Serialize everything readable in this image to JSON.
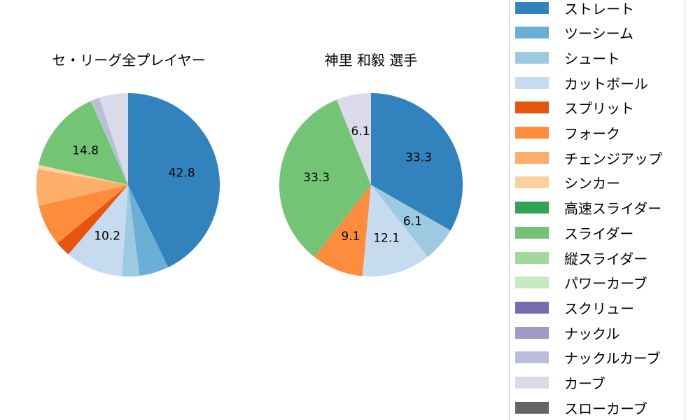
{
  "chart_data": [
    {
      "type": "pie",
      "title": "セ・リーグ全プレイヤー",
      "start_angle": 90,
      "direction": "clockwise",
      "categories": [
        "ストレート",
        "ツーシーム",
        "シュート",
        "カットボール",
        "スプリット",
        "フォーク",
        "チェンジアップ",
        "シンカー",
        "高速スライダー",
        "スライダー",
        "縦スライダー",
        "パワーカーブ",
        "スクリュー",
        "ナックル",
        "ナックルカーブ",
        "カーブ",
        "スローカーブ"
      ],
      "values": [
        42.8,
        5.2,
        3.1,
        10.2,
        2.7,
        7.3,
        6.4,
        0.8,
        0,
        14.8,
        0.3,
        0,
        0,
        0,
        1.3,
        5.1,
        0
      ],
      "labels_shown": {
        "ストレート": "42.8",
        "カットボール": "10.2",
        "スライダー": "14.8"
      }
    },
    {
      "type": "pie",
      "title": "神里 和毅  選手",
      "start_angle": 90,
      "direction": "clockwise",
      "categories": [
        "ストレート",
        "ツーシーム",
        "シュート",
        "カットボール",
        "スプリット",
        "フォーク",
        "チェンジアップ",
        "シンカー",
        "高速スライダー",
        "スライダー",
        "縦スライダー",
        "パワーカーブ",
        "スクリュー",
        "ナックル",
        "ナックルカーブ",
        "カーブ",
        "スローカーブ"
      ],
      "values": [
        33.3,
        0,
        6.1,
        12.1,
        0,
        9.1,
        0,
        0,
        0,
        33.3,
        0,
        0,
        0,
        0,
        0,
        6.1,
        0
      ],
      "labels_shown": {
        "ストレート": "33.3",
        "シュート": "6.1",
        "カットボール": "12.1",
        "フォーク": "9.1",
        "スライダー": "33.3",
        "カーブ": "6.1"
      }
    }
  ],
  "legend": {
    "items": [
      {
        "label": "ストレート",
        "color": "#3182bd"
      },
      {
        "label": "ツーシーム",
        "color": "#6baed6"
      },
      {
        "label": "シュート",
        "color": "#9ecae1"
      },
      {
        "label": "カットボール",
        "color": "#c6dbef"
      },
      {
        "label": "スプリット",
        "color": "#e6550d"
      },
      {
        "label": "フォーク",
        "color": "#fd8d3c"
      },
      {
        "label": "チェンジアップ",
        "color": "#fdae6b"
      },
      {
        "label": "シンカー",
        "color": "#fdd0a2"
      },
      {
        "label": "高速スライダー",
        "color": "#31a354"
      },
      {
        "label": "スライダー",
        "color": "#74c476"
      },
      {
        "label": "縦スライダー",
        "color": "#a1d99b"
      },
      {
        "label": "パワーカーブ",
        "color": "#c7e9c0"
      },
      {
        "label": "スクリュー",
        "color": "#756bb1"
      },
      {
        "label": "ナックル",
        "color": "#9e9ac8"
      },
      {
        "label": "ナックルカーブ",
        "color": "#bcbddc"
      },
      {
        "label": "カーブ",
        "color": "#dadaeb"
      },
      {
        "label": "スローカーブ",
        "color": "#636363"
      }
    ]
  }
}
